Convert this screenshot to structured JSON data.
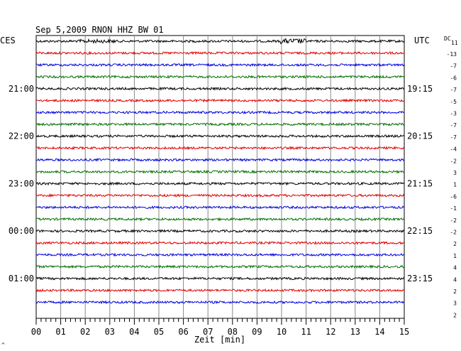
{
  "chart_data": {
    "type": "line",
    "title": "Sep 5,2009   RNON HHZ BW 01",
    "left_axis_label": "CES",
    "right_axis_label": "UTC",
    "dc_label": "DC",
    "dc_first": "11",
    "xlabel": "Zeit [min]",
    "xlim": [
      0,
      15
    ],
    "x_ticks": [
      "00",
      "01",
      "02",
      "03",
      "04",
      "05",
      "06",
      "07",
      "08",
      "09",
      "10",
      "11",
      "12",
      "13",
      "14",
      "15"
    ],
    "left_time_labels": [
      "21:00",
      "22:00",
      "23:00",
      "00:00",
      "01:00"
    ],
    "right_time_labels": [
      "19:15",
      "20:15",
      "21:15",
      "22:15",
      "23:15"
    ],
    "trace_colors": [
      "#000000",
      "#e00000",
      "#0000e0",
      "#007000"
    ],
    "dc_offsets": [
      "-13",
      "-7",
      "-6",
      "-7",
      "-5",
      "-3",
      "-7",
      "-7",
      "-4",
      "-2",
      "3",
      "1",
      "-6",
      "-1",
      "-2",
      "-2",
      "2",
      "1",
      "4",
      "4",
      "2",
      "3",
      "2"
    ],
    "trace_count": 23,
    "corner_mark": "^"
  }
}
